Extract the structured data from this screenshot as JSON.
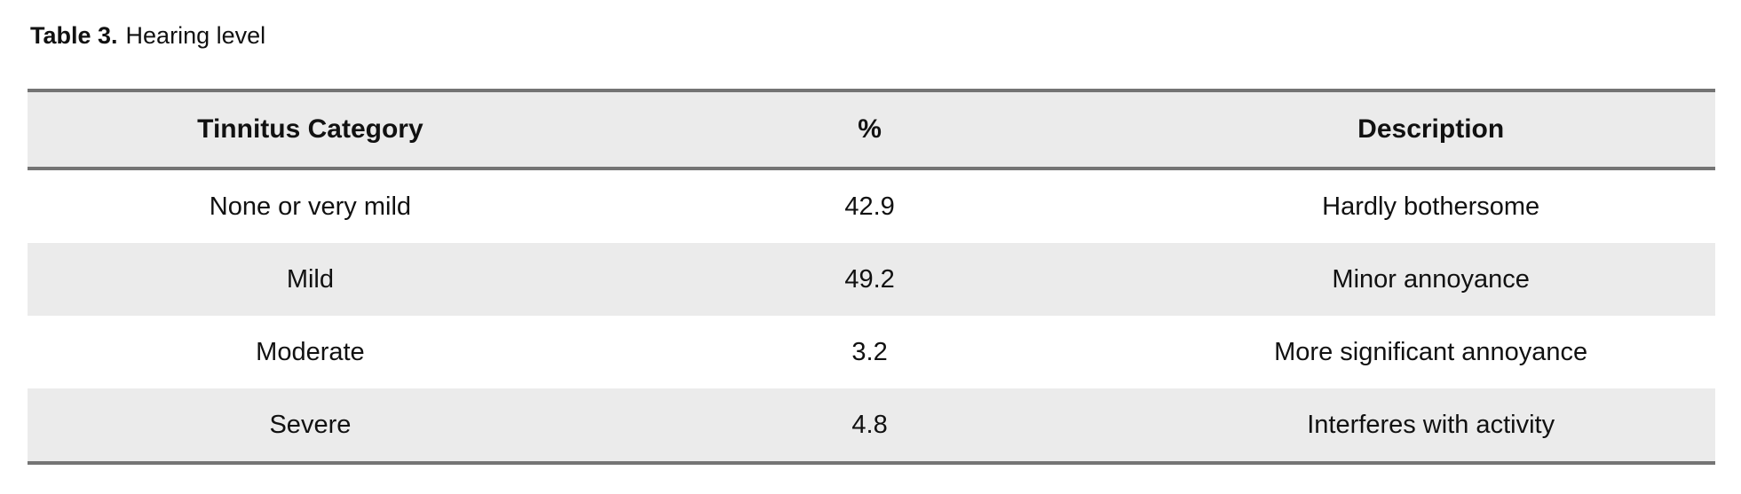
{
  "caption": {
    "label": "Table 3.",
    "title": "Hearing level"
  },
  "table": {
    "columns": [
      "Tinnitus Category",
      "%",
      "Description"
    ],
    "rows": [
      [
        "None or very mild",
        "42.9",
        "Hardly bothersome"
      ],
      [
        "Mild",
        "49.2",
        "Minor annoyance"
      ],
      [
        "Moderate",
        "3.2",
        "More significant annoyance"
      ],
      [
        "Severe",
        "4.8",
        "Interferes with activity"
      ]
    ]
  },
  "colors": {
    "row_band": "#ebebeb",
    "header_background": "#ebebeb",
    "border": "#747474",
    "text": "#111111",
    "page_background": "#ffffff"
  }
}
